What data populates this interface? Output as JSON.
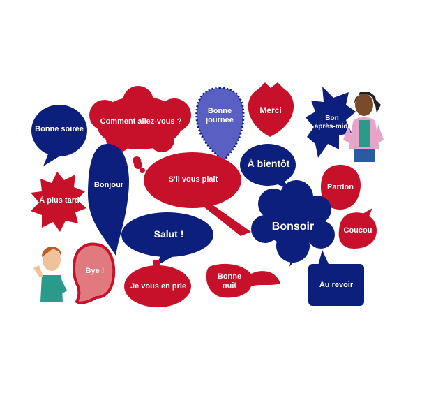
{
  "colors": {
    "navy": "#0d1f7c",
    "red": "#c7102a",
    "light_blue": "#5a5fc4",
    "pink": "#e07a7e"
  },
  "bubbles": {
    "bonne_soiree": "Bonne soirée",
    "comment_allez_vous": "Comment allez-vous ?",
    "bonne_journee": "Bonne\njournée",
    "merci": "Merci",
    "bon_apres_midi": "Bon\naprès-midi",
    "bonjour": "Bonjour",
    "sil_vous_plait": "S'il vous plaît",
    "a_bientot": "À bientôt",
    "a_plus_tard": "À plus tard",
    "pardon": "Pardon",
    "bonsoir": "Bonsoir",
    "salut": "Salut !",
    "coucou": "Coucou",
    "bye": "Bye !",
    "je_vous_en_prie": "Je vous en prie",
    "bonne_nuit": "Bonne\nnuit",
    "au_revoir": "Au revoir"
  },
  "figures": {
    "boy": "boy-thumbs-up-icon",
    "girl": "girl-hands-on-hips-icon"
  }
}
